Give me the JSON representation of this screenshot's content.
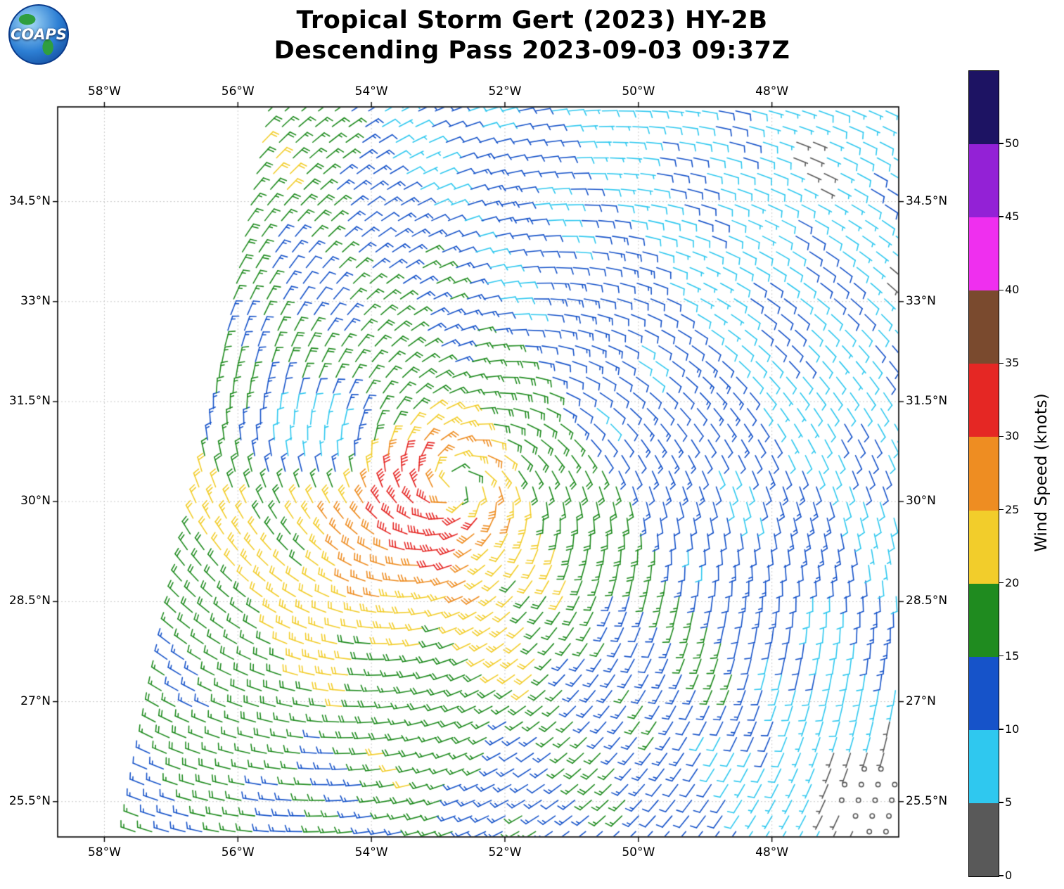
{
  "header": {
    "logo_text": "COAPS",
    "title_line1": "Tropical Storm Gert (2023) HY-2B",
    "title_line2": "Descending Pass 2023-09-03 09:37Z"
  },
  "chart_data": {
    "type": "wind_barb_map",
    "title": "Tropical Storm Gert (2023) HY-2B",
    "subtitle": "Descending Pass 2023-09-03 09:37Z",
    "projection": {
      "lon_min": -58.7,
      "lon_max": -46.1,
      "lat_min": 24.97,
      "lat_max": 35.92
    },
    "x_ticks": {
      "values": [
        -58,
        -56,
        -54,
        -52,
        -50,
        -48
      ],
      "labels": [
        "58°W",
        "56°W",
        "54°W",
        "52°W",
        "50°W",
        "48°W"
      ]
    },
    "y_ticks": {
      "values": [
        25.5,
        27,
        28.5,
        30,
        31.5,
        33,
        34.5
      ],
      "labels": [
        "25.5°N",
        "27°N",
        "28.5°N",
        "30°N",
        "31.5°N",
        "33°N",
        "34.5°N"
      ]
    },
    "colorbar": {
      "label": "Wind Speed (knots)",
      "tick_labels": [
        "0",
        "5",
        "10",
        "15",
        "20",
        "25",
        "30",
        "35",
        "40",
        "45",
        "50"
      ],
      "bin_edges_knots": [
        0,
        5,
        10,
        15,
        20,
        25,
        30,
        35,
        40,
        45,
        50
      ],
      "colors": [
        "#595959",
        "#2fc8ef",
        "#1653c9",
        "#1f8b1f",
        "#f2cd2b",
        "#ee8d22",
        "#e52724",
        "#7a4a2e",
        "#ef2fef",
        "#9321d6",
        "#1d1363"
      ]
    },
    "storm": {
      "name": "Gert",
      "center_lat": 30.25,
      "center_lon": -52.75,
      "max_wind_knots": 33,
      "radius_max_wind_deg": 0.6,
      "eye_min_fraction": 0.45,
      "decay_exponent": 0.45,
      "inflow_angle_deg": 20,
      "asymmetry_amp": 0.28,
      "asymmetry_bearing_deg": 230
    },
    "swath": {
      "left_edge_lon_at_lat25": -57.55,
      "edge_slope_deg_per_deg": 0.185,
      "cell_spacing_deg": 0.25,
      "row_spacing_deg": 0.235
    },
    "calm_zones": [
      {
        "lat": 25.55,
        "lon": -46.55,
        "radius_deg": 2.0,
        "floor": 0.04
      },
      {
        "lat": 31.0,
        "lon": -54.9,
        "radius_deg": 1.15,
        "floor": 0.3
      }
    ],
    "field_adjustments": {
      "noise_amp1": 2.5,
      "noise_amp2": 1.8,
      "nw_boost_knots": 8,
      "speed_cap_knots": 34
    }
  }
}
